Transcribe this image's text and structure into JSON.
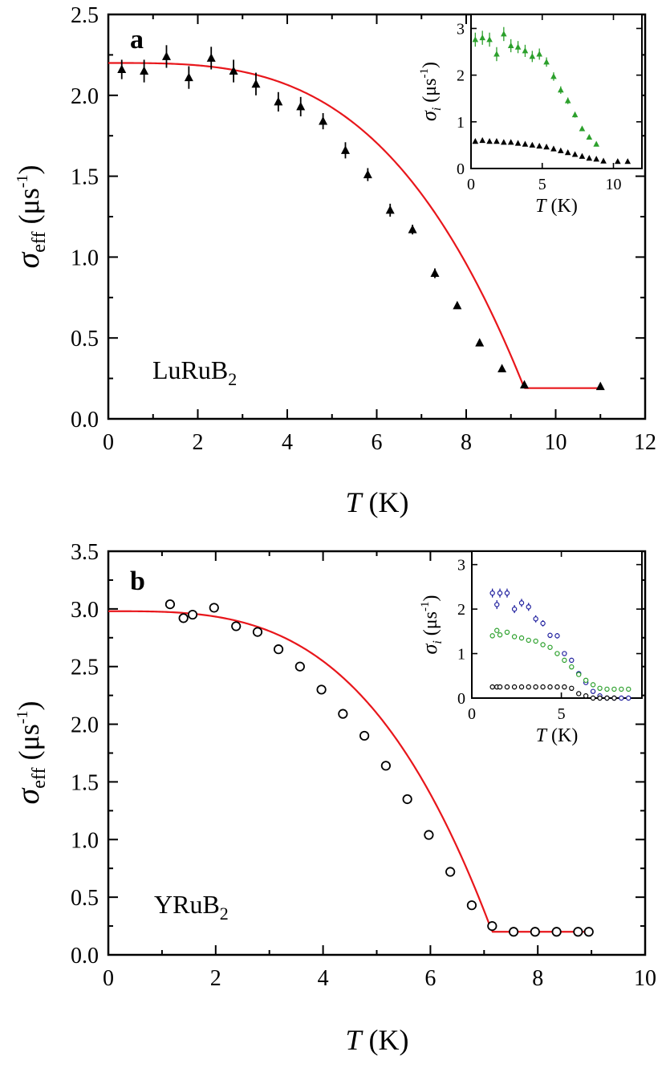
{
  "chart_data": [
    {
      "type": "scatter",
      "panel_label": "a",
      "annotation": "LuRuB",
      "annotation_sub": "2",
      "xlabel": "T",
      "xunit": " (K)",
      "ylabel_symbol": "σ",
      "ylabel_sub": "eff",
      "ylabel_unit_pre": " (μs",
      "ylabel_unit_sup": "-1",
      "ylabel_unit_post": ")",
      "xlim": [
        0,
        12
      ],
      "ylim": [
        0,
        2.5
      ],
      "xticks": [
        0,
        2,
        4,
        6,
        8,
        10,
        12
      ],
      "yticks": [
        0.0,
        0.5,
        1.0,
        1.5,
        2.0,
        2.5
      ],
      "xtick_labels": [
        "0",
        "2",
        "4",
        "6",
        "8",
        "10",
        "12"
      ],
      "ytick_labels": [
        "0.0",
        "0.5",
        "1.0",
        "1.5",
        "2.0",
        "2.5"
      ],
      "marker": "triangle-filled",
      "points": [
        {
          "x": 0.3,
          "y": 2.16,
          "err": 0.06
        },
        {
          "x": 0.8,
          "y": 2.15,
          "err": 0.07
        },
        {
          "x": 1.3,
          "y": 2.24,
          "err": 0.07
        },
        {
          "x": 1.8,
          "y": 2.11,
          "err": 0.07
        },
        {
          "x": 2.3,
          "y": 2.23,
          "err": 0.07
        },
        {
          "x": 2.8,
          "y": 2.15,
          "err": 0.07
        },
        {
          "x": 3.3,
          "y": 2.07,
          "err": 0.07
        },
        {
          "x": 3.8,
          "y": 1.96,
          "err": 0.06
        },
        {
          "x": 4.3,
          "y": 1.93,
          "err": 0.06
        },
        {
          "x": 4.8,
          "y": 1.84,
          "err": 0.05
        },
        {
          "x": 5.3,
          "y": 1.66,
          "err": 0.05
        },
        {
          "x": 5.8,
          "y": 1.51,
          "err": 0.04
        },
        {
          "x": 6.3,
          "y": 1.29,
          "err": 0.04
        },
        {
          "x": 6.8,
          "y": 1.17,
          "err": 0.03
        },
        {
          "x": 7.3,
          "y": 0.9,
          "err": 0.03
        },
        {
          "x": 7.8,
          "y": 0.7,
          "err": 0.02
        },
        {
          "x": 8.3,
          "y": 0.47,
          "err": 0.02
        },
        {
          "x": 8.8,
          "y": 0.31,
          "err": 0.02
        },
        {
          "x": 9.3,
          "y": 0.21,
          "err": 0.01
        },
        {
          "x": 11.0,
          "y": 0.2,
          "err": 0.01
        }
      ],
      "fit": {
        "color": "#e8161b",
        "x_end": 11.0,
        "sigma0": 2.2,
        "sigma_bg": 0.19,
        "tc": 9.3
      },
      "inset": {
        "xlabel": "T",
        "xunit": " (K)",
        "ylabel_symbol": "σ",
        "ylabel_sub": "i",
        "ylabel_unit_pre": " (μs",
        "ylabel_unit_sup": "-1",
        "ylabel_unit_post": ")",
        "xlim": [
          0,
          12
        ],
        "ylim": [
          0,
          3.3
        ],
        "xticks": [
          0,
          5,
          10
        ],
        "yticks": [
          0,
          1,
          2,
          3
        ],
        "xtick_labels": [
          "0",
          "5",
          "10"
        ],
        "ytick_labels": [
          "0",
          "1",
          "2",
          "3"
        ],
        "series": [
          {
            "color": "#2ca02c",
            "marker": "triangle-filled",
            "x": [
              0.3,
              0.8,
              1.3,
              1.8,
              2.3,
              2.8,
              3.3,
              3.8,
              4.3,
              4.8,
              5.3,
              5.8,
              6.3,
              6.8,
              7.3,
              7.8,
              8.3,
              8.8
            ],
            "y": [
              2.76,
              2.8,
              2.76,
              2.45,
              2.88,
              2.63,
              2.6,
              2.52,
              2.4,
              2.45,
              2.28,
              1.97,
              1.68,
              1.45,
              1.15,
              0.85,
              0.67,
              0.52
            ],
            "err": [
              0.15,
              0.15,
              0.15,
              0.15,
              0.15,
              0.14,
              0.13,
              0.13,
              0.12,
              0.12,
              0.1,
              0.09,
              0.08,
              0.07,
              0.06,
              0.05,
              0.04,
              0.03
            ]
          },
          {
            "color": "#000000",
            "marker": "triangle-filled",
            "x": [
              0.3,
              0.8,
              1.3,
              1.8,
              2.3,
              2.8,
              3.3,
              3.8,
              4.3,
              4.8,
              5.3,
              5.8,
              6.3,
              6.8,
              7.3,
              7.8,
              8.3,
              8.8,
              9.3,
              10.3,
              11.0
            ],
            "y": [
              0.58,
              0.6,
              0.58,
              0.58,
              0.56,
              0.56,
              0.54,
              0.52,
              0.5,
              0.48,
              0.46,
              0.42,
              0.38,
              0.34,
              0.3,
              0.26,
              0.22,
              0.2,
              0.16,
              0.15,
              0.15
            ],
            "err": [
              0.03,
              0.03,
              0.03,
              0.03,
              0.03,
              0.03,
              0.03,
              0.03,
              0.03,
              0.03,
              0.03,
              0.03,
              0.02,
              0.02,
              0.02,
              0.02,
              0.02,
              0.02,
              0.02,
              0.02,
              0.02
            ]
          }
        ]
      }
    },
    {
      "type": "scatter",
      "panel_label": "b",
      "annotation": "YRuB",
      "annotation_sub": "2",
      "xlabel": "T",
      "xunit": " (K)",
      "ylabel_symbol": "σ",
      "ylabel_sub": "eff",
      "ylabel_unit_pre": " (μs",
      "ylabel_unit_sup": "-1",
      "ylabel_unit_post": ")",
      "xlim": [
        0,
        10
      ],
      "ylim": [
        0,
        3.5
      ],
      "xticks": [
        0,
        2,
        4,
        6,
        8,
        10
      ],
      "yticks": [
        0.0,
        0.5,
        1.0,
        1.5,
        2.0,
        2.5,
        3.0,
        3.5
      ],
      "xtick_labels": [
        "0",
        "2",
        "4",
        "6",
        "8",
        "10"
      ],
      "ytick_labels": [
        "0.0",
        "0.5",
        "1.0",
        "1.5",
        "2.0",
        "2.5",
        "3.0",
        "3.5"
      ],
      "marker": "circle-open",
      "points": [
        {
          "x": 1.15,
          "y": 3.04,
          "err": 0.04
        },
        {
          "x": 1.4,
          "y": 2.92,
          "err": 0.04
        },
        {
          "x": 1.57,
          "y": 2.95,
          "err": 0.04
        },
        {
          "x": 1.97,
          "y": 3.01,
          "err": 0.04
        },
        {
          "x": 2.38,
          "y": 2.85,
          "err": 0.03
        },
        {
          "x": 2.78,
          "y": 2.8,
          "err": 0.03
        },
        {
          "x": 3.17,
          "y": 2.65,
          "err": 0.03
        },
        {
          "x": 3.57,
          "y": 2.5,
          "err": 0.03
        },
        {
          "x": 3.97,
          "y": 2.3,
          "err": 0.02
        },
        {
          "x": 4.37,
          "y": 2.09,
          "err": 0.02
        },
        {
          "x": 4.77,
          "y": 1.9,
          "err": 0.02
        },
        {
          "x": 5.17,
          "y": 1.64,
          "err": 0.02
        },
        {
          "x": 5.57,
          "y": 1.35,
          "err": 0.02
        },
        {
          "x": 5.97,
          "y": 1.04,
          "err": 0.02
        },
        {
          "x": 6.37,
          "y": 0.72,
          "err": 0.02
        },
        {
          "x": 6.77,
          "y": 0.43,
          "err": 0.02
        },
        {
          "x": 7.15,
          "y": 0.25,
          "err": 0.02
        },
        {
          "x": 7.55,
          "y": 0.2,
          "err": 0.01
        },
        {
          "x": 7.95,
          "y": 0.2,
          "err": 0.01
        },
        {
          "x": 8.35,
          "y": 0.2,
          "err": 0.01
        },
        {
          "x": 8.75,
          "y": 0.2,
          "err": 0.01
        },
        {
          "x": 8.95,
          "y": 0.2,
          "err": 0.01
        }
      ],
      "fit": {
        "color": "#e8161b",
        "x_end": 8.95,
        "sigma0": 2.98,
        "sigma_bg": 0.2,
        "tc": 7.15
      },
      "inset": {
        "xlabel": "T",
        "xunit": " (K)",
        "ylabel_symbol": "σ",
        "ylabel_sub": "i",
        "ylabel_unit_pre": " (μs",
        "ylabel_unit_sup": "-1",
        "ylabel_unit_post": ")",
        "xlim": [
          0,
          9.5
        ],
        "ylim": [
          0,
          3.3
        ],
        "xticks": [
          0,
          5
        ],
        "yticks": [
          0,
          1,
          2,
          3
        ],
        "xtick_labels": [
          "0",
          "5"
        ],
        "ytick_labels": [
          "0",
          "1",
          "2",
          "3"
        ],
        "series": [
          {
            "color": "#1f1f9e",
            "marker": "circle-open",
            "x": [
              1.15,
              1.4,
              1.57,
              1.97,
              2.38,
              2.78,
              3.17,
              3.57,
              3.97,
              4.37,
              4.77,
              5.17,
              5.57,
              5.97,
              6.37,
              6.77,
              7.15,
              7.55,
              7.95,
              8.35,
              8.75
            ],
            "y": [
              2.36,
              2.1,
              2.36,
              2.36,
              2.0,
              2.14,
              2.05,
              1.78,
              1.68,
              1.41,
              1.4,
              1.0,
              0.85,
              0.55,
              0.35,
              0.15,
              0.05,
              0.0,
              0.0,
              0.0,
              0.0
            ],
            "err": [
              0.1,
              0.1,
              0.1,
              0.1,
              0.09,
              0.09,
              0.09,
              0.08,
              0.07,
              0.06,
              0.06,
              0.05,
              0.04,
              0.04,
              0.03,
              0.02,
              0.02,
              0.02,
              0.02,
              0.02,
              0.02
            ]
          },
          {
            "color": "#2ca02c",
            "marker": "circle-open",
            "x": [
              1.15,
              1.4,
              1.57,
              1.97,
              2.38,
              2.78,
              3.17,
              3.57,
              3.97,
              4.37,
              4.77,
              5.17,
              5.57,
              5.97,
              6.37,
              6.77,
              7.15,
              7.55,
              7.95,
              8.35,
              8.75
            ],
            "y": [
              1.4,
              1.52,
              1.42,
              1.48,
              1.38,
              1.35,
              1.3,
              1.28,
              1.2,
              1.14,
              1.0,
              0.85,
              0.7,
              0.53,
              0.4,
              0.3,
              0.22,
              0.2,
              0.2,
              0.2,
              0.2
            ],
            "err": [
              0.04,
              0.04,
              0.04,
              0.04,
              0.04,
              0.04,
              0.04,
              0.03,
              0.03,
              0.03,
              0.03,
              0.03,
              0.03,
              0.02,
              0.02,
              0.02,
              0.02,
              0.02,
              0.02,
              0.02,
              0.02
            ]
          },
          {
            "color": "#000000",
            "marker": "circle-open",
            "x": [
              1.15,
              1.4,
              1.57,
              1.97,
              2.38,
              2.78,
              3.17,
              3.57,
              3.97,
              4.37,
              4.77,
              5.17,
              5.57,
              5.97,
              6.37,
              6.77,
              7.15,
              7.55,
              7.95
            ],
            "y": [
              0.25,
              0.25,
              0.25,
              0.25,
              0.25,
              0.25,
              0.25,
              0.25,
              0.25,
              0.25,
              0.25,
              0.25,
              0.22,
              0.1,
              0.05,
              0.0,
              0.0,
              0.0,
              0.0
            ],
            "err": [
              0.01,
              0.01,
              0.01,
              0.01,
              0.01,
              0.01,
              0.01,
              0.01,
              0.01,
              0.01,
              0.01,
              0.01,
              0.01,
              0.01,
              0.01,
              0.01,
              0.01,
              0.01,
              0.01
            ]
          }
        ]
      }
    }
  ]
}
